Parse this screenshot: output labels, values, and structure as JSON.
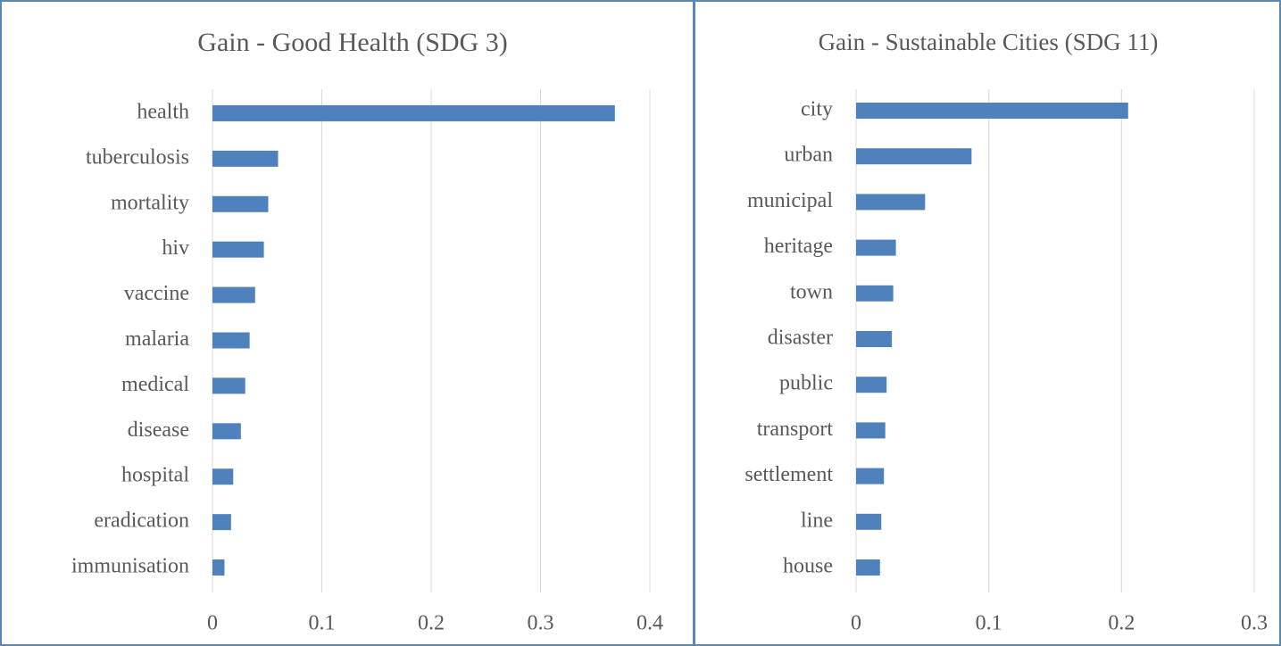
{
  "chart_data": [
    {
      "type": "bar",
      "orientation": "horizontal",
      "title": "Gain - Good Health (SDG 3)",
      "categories": [
        "health",
        "tuberculosis",
        "mortality",
        "hiv",
        "vaccine",
        "malaria",
        "medical",
        "disease",
        "hospital",
        "eradication",
        "immunisation"
      ],
      "values": [
        0.368,
        0.06,
        0.051,
        0.047,
        0.039,
        0.034,
        0.03,
        0.026,
        0.019,
        0.017,
        0.011
      ],
      "color": "#4f81bd",
      "xlim": [
        0,
        0.4
      ],
      "xticks": [
        0,
        0.1,
        0.2,
        0.3,
        0.4
      ],
      "grid": true
    },
    {
      "type": "bar",
      "orientation": "horizontal",
      "title": "Gain - Sustainable Cities (SDG 11)",
      "categories": [
        "city",
        "urban",
        "municipal",
        "heritage",
        "town",
        "disaster",
        "public",
        "transport",
        "settlement",
        "line",
        "house"
      ],
      "values": [
        0.205,
        0.087,
        0.052,
        0.03,
        0.028,
        0.027,
        0.023,
        0.022,
        0.021,
        0.019,
        0.018
      ],
      "color": "#4f81bd",
      "xlim": [
        0,
        0.3
      ],
      "xticks": [
        0,
        0.1,
        0.2,
        0.3
      ],
      "grid": true
    }
  ]
}
